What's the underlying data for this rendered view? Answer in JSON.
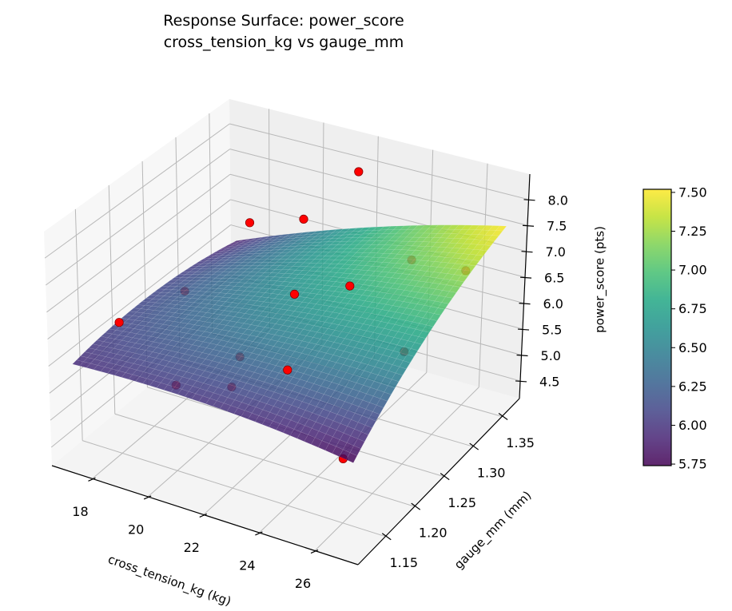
{
  "chart_data": {
    "type": "surface3d",
    "title": [
      "Response Surface: power_score",
      "cross_tension_kg vs gauge_mm"
    ],
    "xlabel": "cross_tension_kg (kg)",
    "ylabel": "gauge_mm (mm)",
    "zlabel": "power_score (pts)",
    "xlim": [
      16.55,
      27.55
    ],
    "ylim": [
      1.103,
      1.38
    ],
    "zlim": [
      4.16,
      8.49
    ],
    "xticks": [
      "18",
      "20",
      "22",
      "24",
      "26"
    ],
    "yticks": [
      "1.15",
      "1.20",
      "1.25",
      "1.30",
      "1.35"
    ],
    "zticks": [
      "4.5",
      "5.0",
      "5.5",
      "6.0",
      "6.5",
      "7.0",
      "7.5",
      "8.0"
    ],
    "grid": true,
    "surface": {
      "colormap": "viridis",
      "alpha": 0.85,
      "x_range": [
        17,
        27
      ],
      "y_range": [
        1.12,
        1.37
      ],
      "model": "z = c0 + c1*s + c2*t + c3*s^2 + c4*t^2 + c5*s*t, s=(x-17)/10, t=(y-1.12)/0.25",
      "coefficients": [
        5.95,
        0.315,
        0.7,
        -0.525,
        -0.8,
        1.88
      ]
    },
    "points": {
      "color": "#ff0000",
      "edge_color": "#8b0000",
      "x": [
        18,
        20,
        22,
        24,
        26,
        18,
        20,
        22,
        24,
        26,
        18,
        20,
        22,
        24,
        26
      ],
      "y": [
        1.15,
        1.15,
        1.15,
        1.15,
        1.15,
        1.25,
        1.25,
        1.25,
        1.25,
        1.25,
        1.35,
        1.35,
        1.35,
        1.35,
        1.35
      ],
      "z": [
        6.6,
        5.75,
        6.03,
        6.66,
        5.34,
        6.22,
        5.27,
        6.76,
        7.21,
        6.27,
        6.55,
        6.9,
        8.1,
        6.67,
        6.74
      ]
    },
    "colorbar": {
      "range": [
        5.74,
        7.52
      ],
      "ticks": [
        "5.75",
        "6.00",
        "6.25",
        "6.50",
        "6.75",
        "7.00",
        "7.25",
        "7.50"
      ]
    }
  }
}
